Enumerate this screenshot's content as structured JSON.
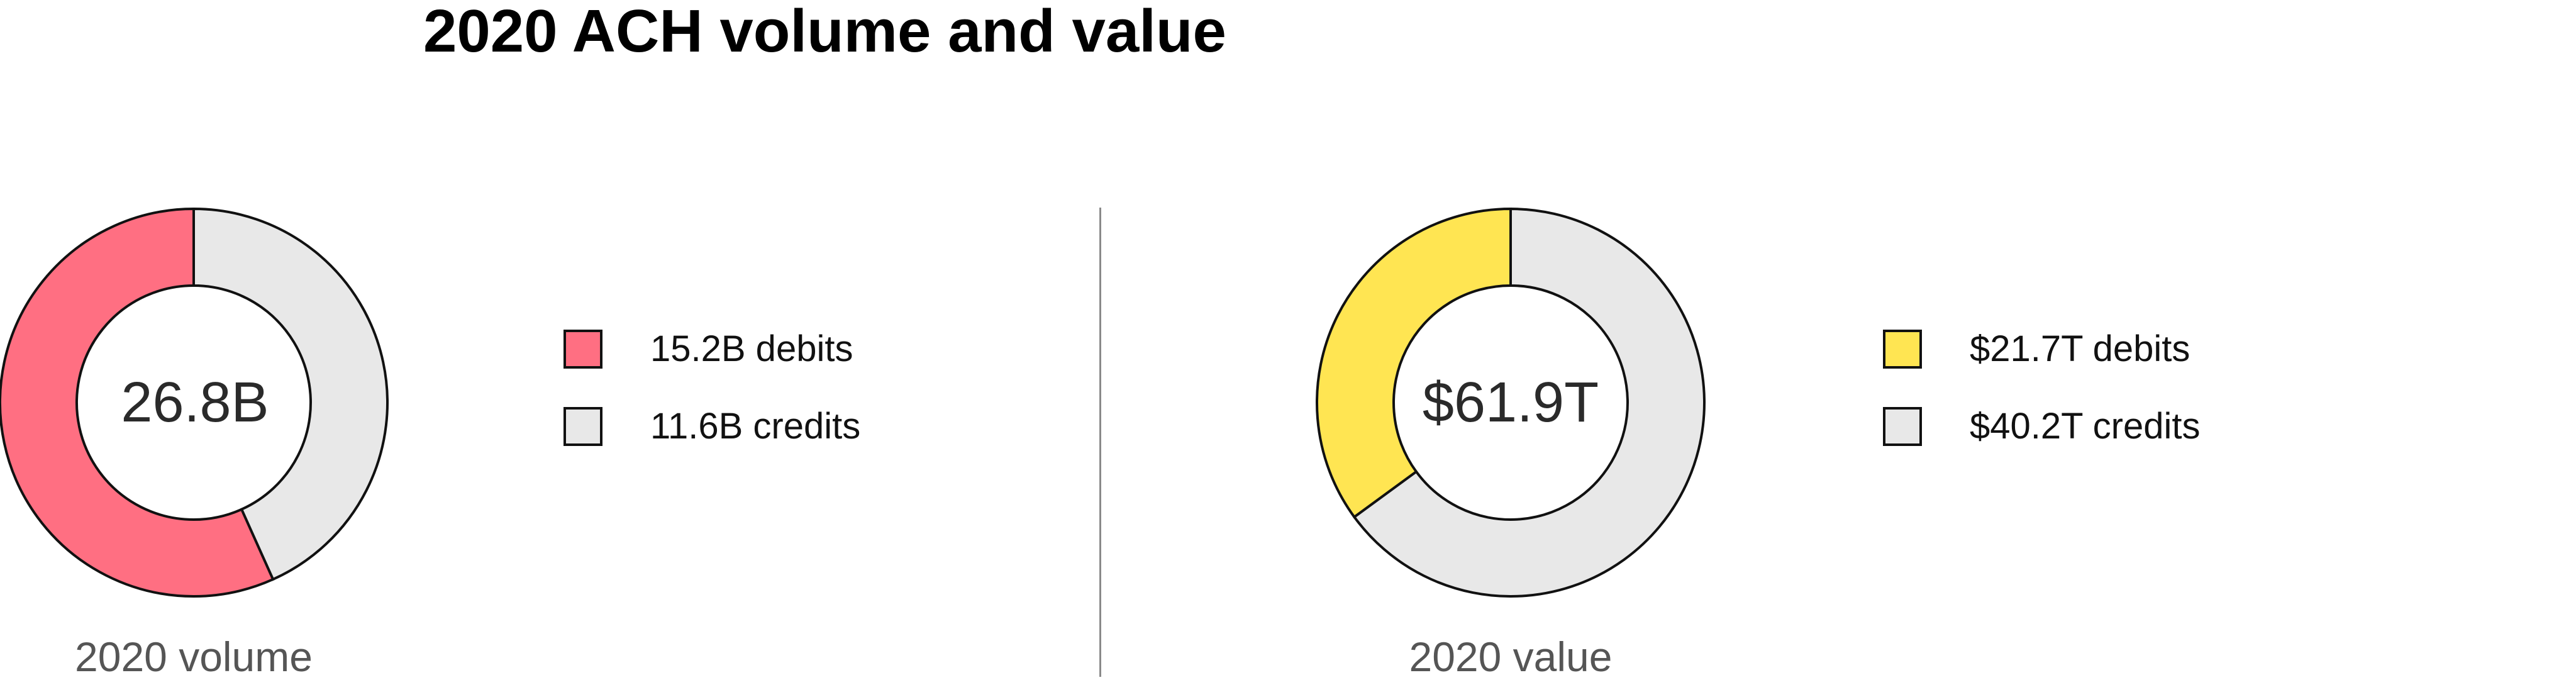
{
  "chart_data": [
    {
      "type": "pie",
      "title": "2020 ACH volume and value",
      "donut": true,
      "caption": "2020 volume",
      "center_label": "26.8B",
      "total": 26.8,
      "unit": "B",
      "slices": [
        {
          "label": "15.2B debits",
          "category": "debits",
          "value": 15.2,
          "color": "#ff6f82"
        },
        {
          "label": "11.6B credits",
          "category": "credits",
          "value": 11.6,
          "color": "#e8e8e8"
        }
      ]
    },
    {
      "type": "pie",
      "donut": true,
      "caption": "2020 value",
      "center_label": "$61.9T",
      "total": 61.9,
      "unit": "T",
      "slices": [
        {
          "label": "$21.7T debits",
          "category": "debits",
          "value": 21.7,
          "color": "#ffe552"
        },
        {
          "label": "$40.2T credits",
          "category": "credits",
          "value": 40.2,
          "color": "#e8e8e8"
        }
      ]
    }
  ],
  "colors": {
    "outline": "#111111",
    "divider": "#8a8a8a",
    "background": "#ffffff"
  }
}
